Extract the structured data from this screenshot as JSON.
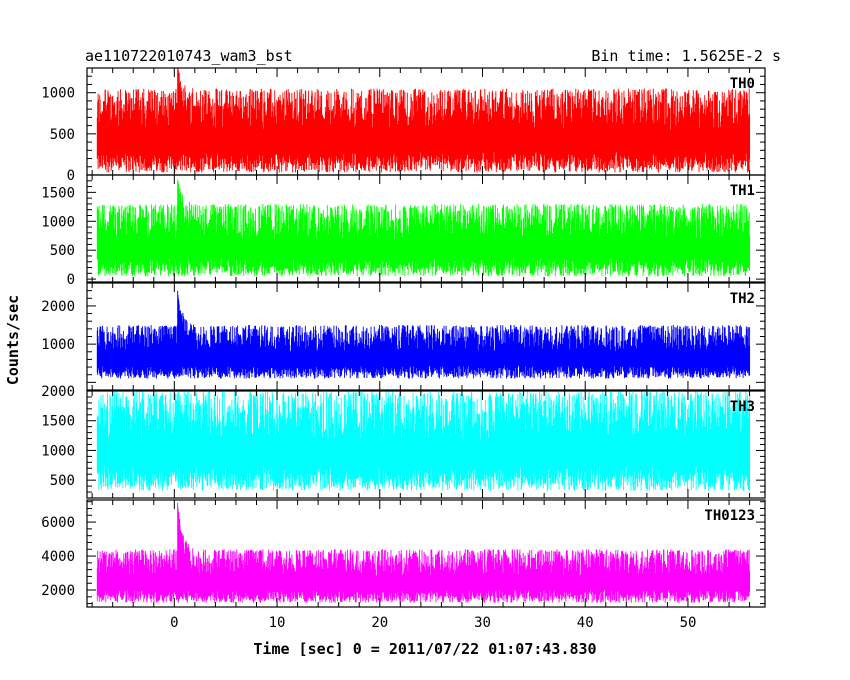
{
  "header": {
    "title": "ae110722010743_wam3_bst",
    "bin_time": "Bin time: 1.5625E-2 s"
  },
  "chart_data": {
    "type": "line",
    "xlabel": "Time [sec] 0 = 2011/07/22 01:07:43.830",
    "ylabel": "Counts/sec",
    "xlim": [
      -8.5,
      57.5
    ],
    "x_ticks": [
      0,
      10,
      20,
      30,
      40,
      50
    ],
    "x_tick_labels": [
      "0",
      "10",
      "20",
      "30",
      "40",
      "50"
    ],
    "data_range": [
      -7.5,
      56
    ],
    "burst_time": 0.3,
    "panels": [
      {
        "name": "TH0",
        "color": "#ff0000",
        "ylim": [
          0,
          1300
        ],
        "y_ticks": [
          0,
          500,
          1000
        ],
        "y_tick_labels": [
          "0",
          "500",
          "1000"
        ],
        "baseline_min": 30,
        "baseline_max": 1050,
        "spike_max": 1350
      },
      {
        "name": "TH1",
        "color": "#00ff00",
        "ylim": [
          -50,
          1800
        ],
        "y_ticks": [
          0,
          500,
          1000,
          1500
        ],
        "y_tick_labels": [
          "0",
          "500",
          "1000",
          "1500"
        ],
        "baseline_min": 50,
        "baseline_max": 1300,
        "spike_max": 1750
      },
      {
        "name": "TH2",
        "color": "#0000ff",
        "ylim": [
          -200,
          2600
        ],
        "y_ticks": [
          1000,
          2000
        ],
        "y_tick_labels": [
          "1000",
          "2000"
        ],
        "baseline_min": 100,
        "baseline_max": 1500,
        "spike_max": 2450
      },
      {
        "name": "TH3",
        "color": "#00ffff",
        "ylim": [
          200,
          2000
        ],
        "y_ticks": [
          500,
          1000,
          1500,
          2000
        ],
        "y_tick_labels": [
          "500",
          "1000",
          "1500",
          "2000"
        ],
        "baseline_min": 320,
        "baseline_max": 2000,
        "spike_max": 2000
      },
      {
        "name": "TH0123",
        "color": "#ff00ff",
        "ylim": [
          1000,
          7300
        ],
        "y_ticks": [
          2000,
          4000,
          6000
        ],
        "y_tick_labels": [
          "2000",
          "4000",
          "6000"
        ],
        "baseline_min": 1250,
        "baseline_max": 4400,
        "spike_max": 7300
      }
    ]
  }
}
